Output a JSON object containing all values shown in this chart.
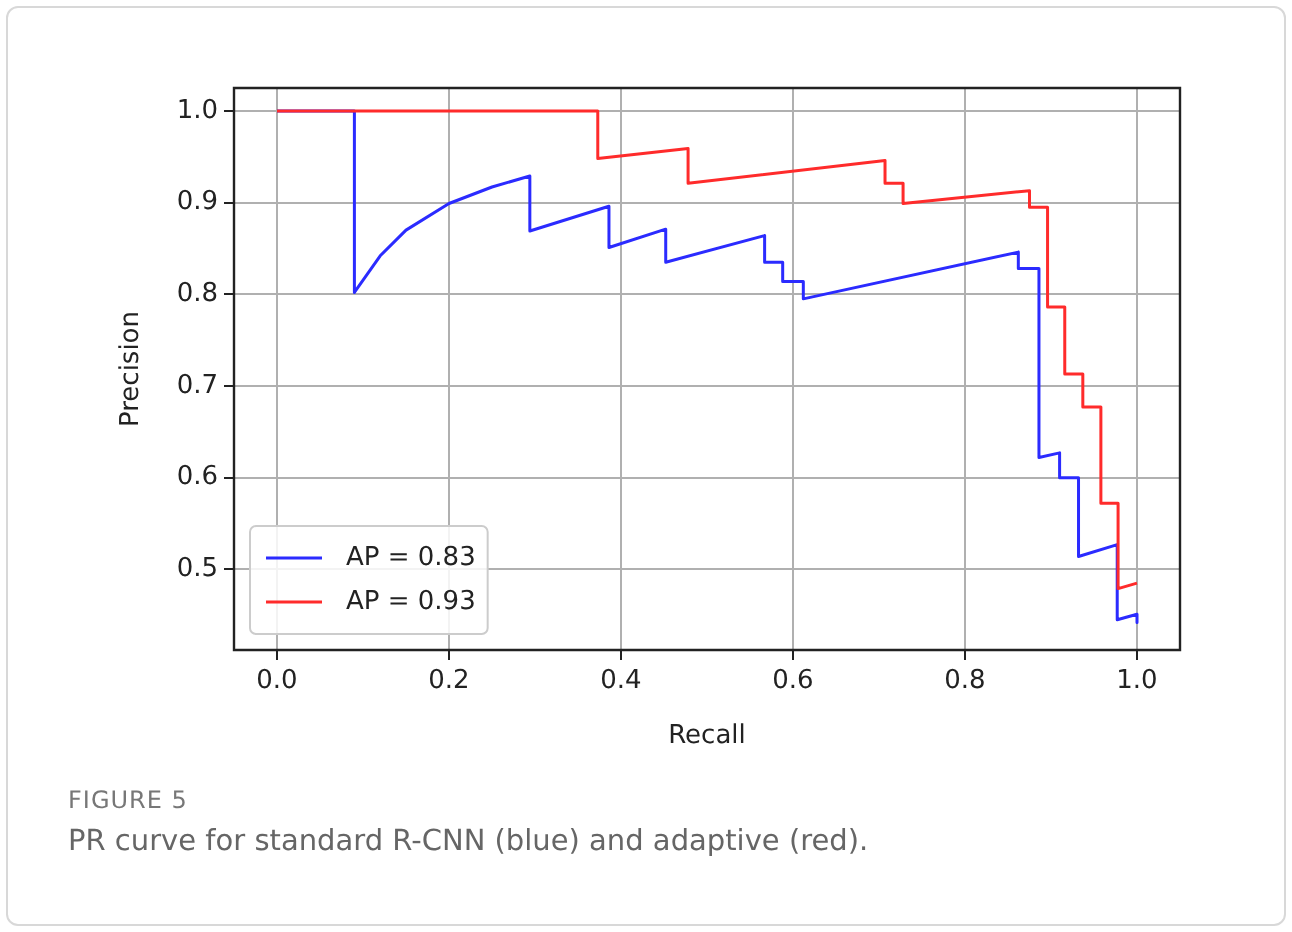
{
  "chart_data": {
    "type": "line",
    "xlabel": "Recall",
    "ylabel": "Precision",
    "xlim": [
      -0.05,
      1.05
    ],
    "ylim": [
      0.412,
      1.025
    ],
    "xticks": [
      {
        "value": 0,
        "label": "0.0"
      },
      {
        "value": 0.2,
        "label": "0.2"
      },
      {
        "value": 0.4,
        "label": "0.4"
      },
      {
        "value": 0.6,
        "label": "0.6"
      },
      {
        "value": 0.8,
        "label": "0.8"
      },
      {
        "value": 1,
        "label": "1.0"
      }
    ],
    "yticks": [
      {
        "value": 0.5,
        "label": "0.5"
      },
      {
        "value": 0.6,
        "label": "0.6"
      },
      {
        "value": 0.7,
        "label": "0.7"
      },
      {
        "value": 0.8,
        "label": "0.8"
      },
      {
        "value": 0.9,
        "label": "0.9"
      },
      {
        "value": 1,
        "label": "1.0"
      }
    ],
    "grid": true,
    "legend": "bottom left",
    "marker": "none",
    "line_style": "solid",
    "series": [
      {
        "name": "AP = 0.83",
        "color": "#2b2bff",
        "x": [
          0,
          0.09,
          0.09,
          0.12,
          0.15,
          0.2,
          0.25,
          0.294,
          0.294,
          0.386,
          0.386,
          0.452,
          0.452,
          0.567,
          0.567,
          0.588,
          0.588,
          0.612,
          0.612,
          0.862,
          0.862,
          0.886,
          0.886,
          0.91,
          0.91,
          0.932,
          0.932,
          0.977,
          0.977,
          1.0,
          1.0
        ],
        "values": [
          1.0,
          1.0,
          0.802,
          0.842,
          0.87,
          0.899,
          0.917,
          0.929,
          0.869,
          0.896,
          0.851,
          0.871,
          0.835,
          0.864,
          0.835,
          0.835,
          0.814,
          0.814,
          0.795,
          0.846,
          0.828,
          0.828,
          0.622,
          0.627,
          0.6,
          0.6,
          0.514,
          0.527,
          0.445,
          0.451,
          0.442
        ]
      },
      {
        "name": "AP = 0.93",
        "color": "#ff2b2b",
        "x": [
          0,
          0.373,
          0.373,
          0.478,
          0.478,
          0.707,
          0.707,
          0.728,
          0.728,
          0.875,
          0.875,
          0.896,
          0.896,
          0.916,
          0.916,
          0.937,
          0.937,
          0.958,
          0.958,
          0.978,
          0.978,
          1.0
        ],
        "values": [
          1.0,
          1.0,
          0.948,
          0.959,
          0.921,
          0.946,
          0.921,
          0.921,
          0.899,
          0.913,
          0.895,
          0.895,
          0.786,
          0.786,
          0.713,
          0.713,
          0.677,
          0.677,
          0.572,
          0.572,
          0.479,
          0.485
        ]
      }
    ],
    "annotations": [
      "FIGURE 5",
      "PR curve for standard R-CNN (blue) and adaptive (red)."
    ]
  }
}
